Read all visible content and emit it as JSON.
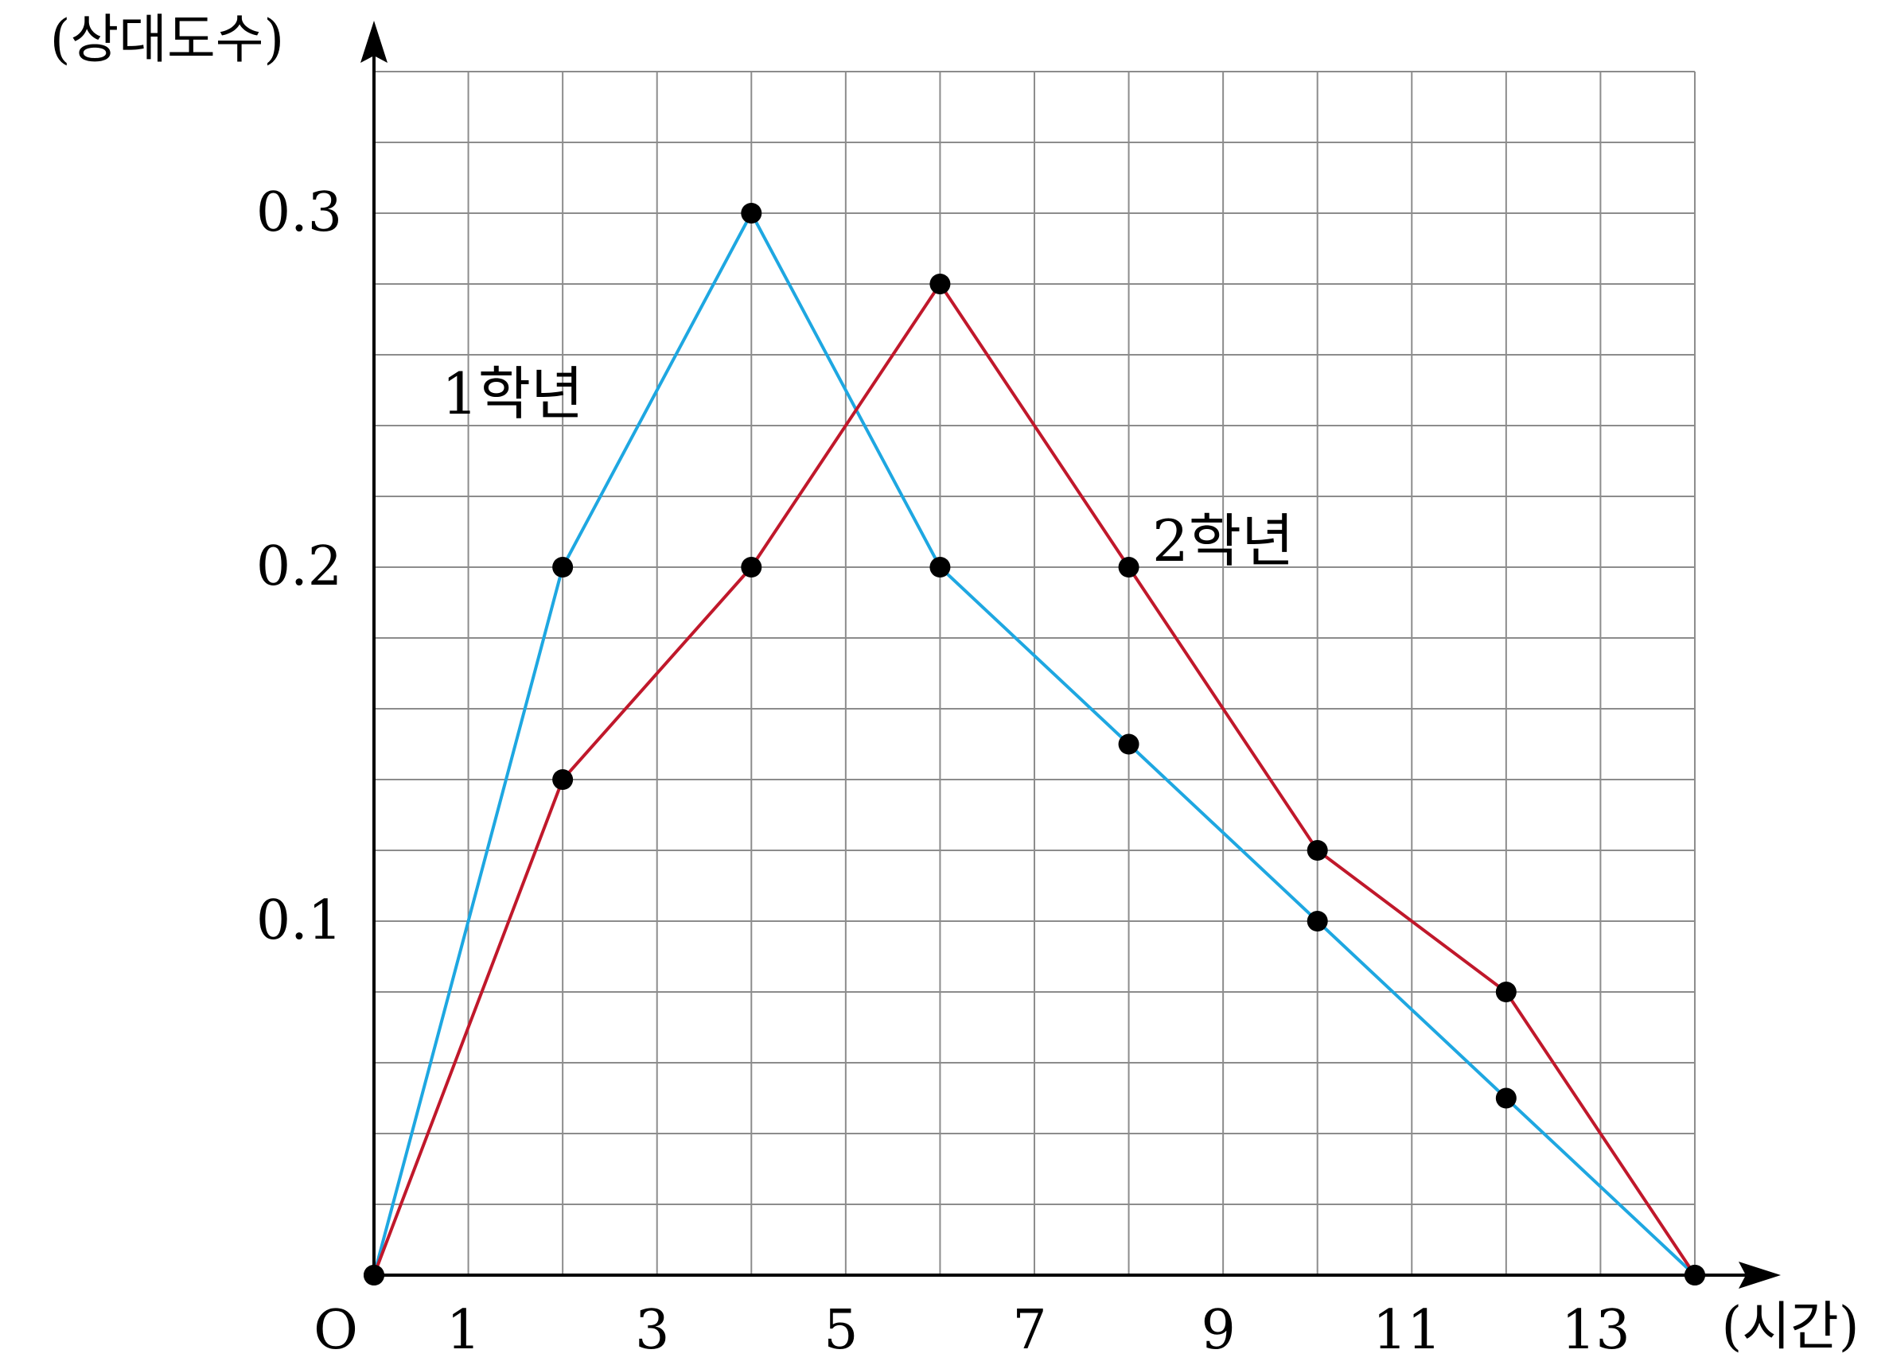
{
  "chart_data": {
    "type": "line",
    "origin_label": "O",
    "xlabel": "(시간)",
    "ylabel": "(상대도수)",
    "xlim": [
      0,
      14
    ],
    "ylim": [
      0,
      0.34
    ],
    "grid": true,
    "x_tick_labels": [
      "1",
      "3",
      "5",
      "7",
      "9",
      "11",
      "13"
    ],
    "y_tick_labels": [
      "0.1",
      "0.2",
      "0.3"
    ],
    "series": [
      {
        "name": "1학년",
        "color": "#1ea7e1",
        "x": [
          0,
          2,
          4,
          6,
          8,
          10,
          12,
          14
        ],
        "y": [
          0,
          0.2,
          0.3,
          0.2,
          0.15,
          0.1,
          0.05,
          0
        ]
      },
      {
        "name": "2학년",
        "color": "#c0182b",
        "x": [
          0,
          2,
          4,
          6,
          8,
          10,
          12,
          14
        ],
        "y": [
          0,
          0.14,
          0.2,
          0.28,
          0.2,
          0.12,
          0.08,
          0
        ]
      }
    ]
  }
}
